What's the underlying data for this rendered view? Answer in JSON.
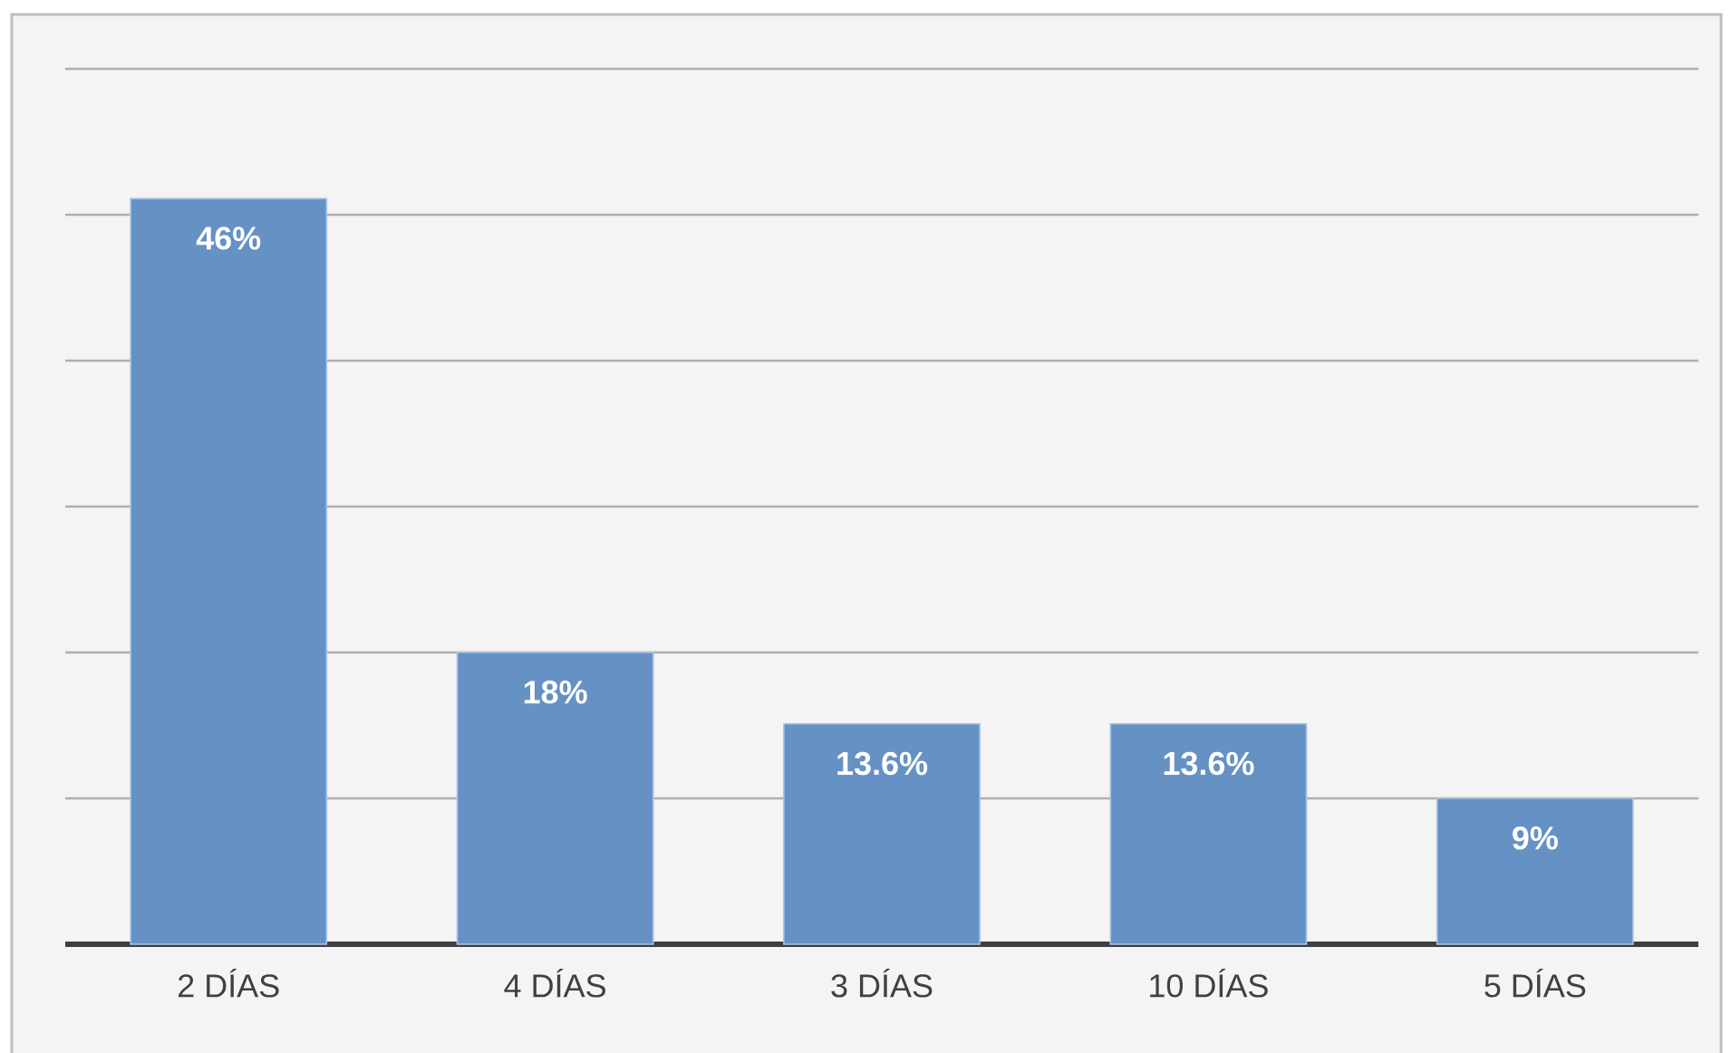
{
  "chart_data": {
    "type": "bar",
    "categories": [
      "2 DÍAS",
      "4 DÍAS",
      "3 DÍAS",
      "10 DÍAS",
      "5 DÍAS"
    ],
    "values": [
      46,
      18,
      13.6,
      13.6,
      9
    ],
    "value_labels": [
      "46%",
      "18%",
      "13.6%",
      "13.6%",
      "9%"
    ],
    "color": "#6591c5",
    "ylim": [
      0,
      54
    ],
    "yticks": [
      {
        "value": 0,
        "label": null
      },
      {
        "value": 9,
        "label": null
      },
      {
        "value": 18,
        "label": null
      },
      {
        "value": 27,
        "label": null
      },
      {
        "value": 36,
        "label": null
      },
      {
        "value": 45,
        "label": null
      },
      {
        "value": 54,
        "label": null
      }
    ],
    "grid": "y",
    "tick_labels": "x"
  }
}
